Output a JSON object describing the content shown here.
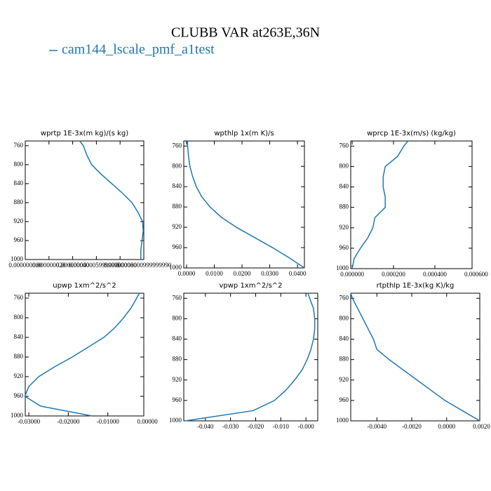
{
  "title": "CLUBB VAR at263E,36N",
  "legend": {
    "name": "cam144_lscale_pmf_a1test",
    "color": "#1f77b4"
  },
  "chart_data": [
    {
      "type": "line",
      "title": "wprtp  1E-3x(m kg)/(s kg)",
      "levels": [
        750,
        760,
        780,
        800,
        820,
        840,
        860,
        880,
        900,
        920,
        940,
        960,
        980,
        1000
      ],
      "values": [
        4.6e-08,
        4.9e-08,
        5.2e-08,
        5.6e-08,
        6.4e-08,
        7.3e-08,
        8.2e-08,
        9e-08,
        9.5e-08,
        9.9e-08,
        9.95e-08,
        9.85e-08,
        9.75e-08,
        9.75e-08
      ],
      "xlim": [
        0,
        1e-07
      ],
      "xticks": [
        {
          "value": 0,
          "label": "0.000000000"
        },
        {
          "value": 2e-08,
          "label": "0.000000020"
        },
        {
          "value": 4e-08,
          "label": "0.000000040"
        },
        {
          "value": 6e-08,
          "label": "0.0000000599999990"
        },
        {
          "value": 8e-08,
          "label": "0.000000080"
        },
        {
          "value": 1e-07,
          "label": "0.0000000999999990"
        }
      ],
      "ylim": [
        750,
        1000
      ],
      "yticks": [
        760,
        800,
        840,
        880,
        920,
        960,
        1000
      ],
      "y_reversed": true,
      "color": "#1f77b4"
    },
    {
      "type": "line",
      "title": "wpthlp  1x(m K)/s",
      "levels": [
        750,
        760,
        780,
        800,
        820,
        840,
        860,
        880,
        900,
        920,
        940,
        960,
        980,
        1000
      ],
      "values": [
        0.0003,
        0.0004,
        0.0007,
        0.0012,
        0.0022,
        0.0035,
        0.0055,
        0.0085,
        0.0125,
        0.018,
        0.0245,
        0.031,
        0.037,
        0.0425
      ],
      "xlim": [
        -0.001,
        0.0425
      ],
      "xticks": [
        {
          "value": 0,
          "label": "0.0000"
        },
        {
          "value": 0.01,
          "label": "0.0100"
        },
        {
          "value": 0.02,
          "label": "0.0200"
        },
        {
          "value": 0.03,
          "label": "0.0300"
        },
        {
          "value": 0.04,
          "label": "0.0400"
        }
      ],
      "ylim": [
        750,
        1000
      ],
      "yticks": [
        760,
        800,
        840,
        880,
        920,
        960,
        1000
      ],
      "y_reversed": true,
      "color": "#1f77b4"
    },
    {
      "type": "line",
      "title": "wprcp  1E-3x(m/s) (kg/kg)",
      "levels": [
        750,
        760,
        780,
        800,
        820,
        840,
        860,
        880,
        900,
        920,
        940,
        960,
        980,
        1000
      ],
      "values": [
        0.00027,
        0.00025,
        0.00022,
        0.00016,
        0.00015,
        0.00015,
        0.00016,
        0.00016,
        0.00011,
        0.0001,
        7.5e-05,
        4e-05,
        1e-05,
        0
      ],
      "xlim": [
        -7e-06,
        0.00058
      ],
      "xticks": [
        {
          "value": 0,
          "label": "0.000000"
        },
        {
          "value": 0.0002,
          "label": "0.000200"
        },
        {
          "value": 0.0004,
          "label": "0.000400"
        },
        {
          "value": 0.0006,
          "label": "0.000600"
        }
      ],
      "ylim": [
        750,
        1000
      ],
      "yticks": [
        760,
        800,
        840,
        880,
        920,
        960,
        1000
      ],
      "y_reversed": true,
      "color": "#1f77b4"
    },
    {
      "type": "line",
      "title": "upwp  1xm^2/s^2",
      "levels": [
        750,
        760,
        780,
        800,
        820,
        840,
        860,
        880,
        900,
        920,
        940,
        960,
        980,
        1000
      ],
      "values": [
        -0.002,
        -0.0027,
        -0.0041,
        -0.006,
        -0.0082,
        -0.011,
        -0.015,
        -0.019,
        -0.0235,
        -0.0275,
        -0.03,
        -0.031,
        -0.027,
        -0.014
      ],
      "xlim": [
        -0.0309,
        -0.0009
      ],
      "xticks": [
        {
          "value": -0.03,
          "label": "-0.03000"
        },
        {
          "value": -0.02,
          "label": "-0.02000"
        },
        {
          "value": -0.01,
          "label": "-0.01000"
        },
        {
          "value": 0,
          "label": "0.00000"
        }
      ],
      "ylim": [
        750,
        1000
      ],
      "yticks": [
        760,
        800,
        840,
        880,
        920,
        960,
        1000
      ],
      "y_reversed": true,
      "color": "#1f77b4"
    },
    {
      "type": "line",
      "title": "vpwp  1xm^2/s^2",
      "levels": [
        750,
        760,
        780,
        800,
        820,
        840,
        860,
        880,
        900,
        920,
        940,
        960,
        980,
        1000
      ],
      "values": [
        0.0008,
        0.0015,
        0.003,
        0.0035,
        0.0035,
        0.003,
        0.002,
        0.0005,
        -0.0015,
        -0.0045,
        -0.008,
        -0.0125,
        -0.021,
        -0.048
      ],
      "xlim": [
        -0.0486,
        0.0047
      ],
      "xticks": [
        {
          "value": -0.04,
          "label": "-0.040"
        },
        {
          "value": -0.03,
          "label": "-0.030"
        },
        {
          "value": -0.02,
          "label": "-0.020"
        },
        {
          "value": -0.01,
          "label": "-0.010"
        },
        {
          "value": 0,
          "label": "-0.000"
        }
      ],
      "ylim": [
        750,
        1000
      ],
      "yticks": [
        760,
        800,
        840,
        880,
        920,
        960,
        1000
      ],
      "y_reversed": true,
      "color": "#1f77b4"
    },
    {
      "type": "line",
      "title": "rtpthlp  1E-3x(kg K)/kg",
      "levels": [
        750,
        760,
        780,
        800,
        820,
        840,
        860,
        880,
        900,
        920,
        940,
        960,
        980,
        1000
      ],
      "values": [
        -0.0055,
        -0.0054,
        -0.0051,
        -0.0048,
        -0.0045,
        -0.0042,
        -0.004,
        -0.0033,
        -0.0025,
        -0.0017,
        -0.0009,
        -0.0001,
        0.0009,
        0.0019
      ],
      "xlim": [
        -0.0055,
        0.0019
      ],
      "xticks": [
        {
          "value": -0.004,
          "label": "-0.0040"
        },
        {
          "value": -0.002,
          "label": "-0.0020"
        },
        {
          "value": 0,
          "label": "0.0000"
        },
        {
          "value": 0.002,
          "label": "0.0020"
        }
      ],
      "ylim": [
        750,
        1000
      ],
      "yticks": [
        760,
        800,
        840,
        880,
        920,
        960,
        1000
      ],
      "y_reversed": true,
      "color": "#1f77b4"
    }
  ]
}
